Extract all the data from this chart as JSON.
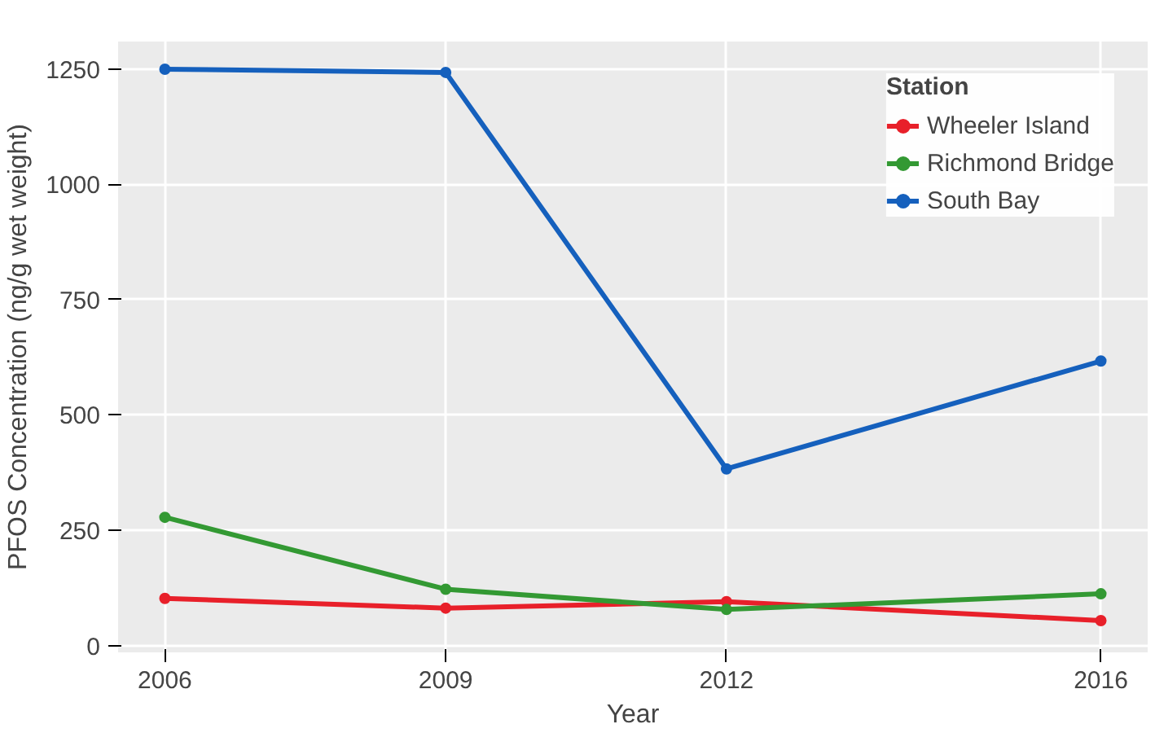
{
  "chart_data": {
    "type": "line",
    "xlabel": "Year",
    "ylabel": "PFOS Concentration (ng/g wet weight)",
    "legend_title": "Station",
    "x": [
      2006,
      2009,
      2012,
      2016
    ],
    "series": [
      {
        "name": "Wheeler Island",
        "color": "#e8202a",
        "values": [
          102,
          81,
          95,
          54
        ]
      },
      {
        "name": "Richmond Bridge",
        "color": "#339933",
        "values": [
          278,
          122,
          78,
          112
        ]
      },
      {
        "name": "South Bay",
        "color": "#1560bd",
        "values": [
          1250,
          1243,
          383,
          617
        ]
      }
    ],
    "xlim": [
      2005.5,
      2016.5
    ],
    "ylim": [
      -15,
      1310
    ],
    "xticks": [
      2006,
      2009,
      2012,
      2016
    ],
    "yticks": [
      0,
      250,
      500,
      750,
      1000,
      1250
    ],
    "grid": true,
    "legend": "top right",
    "marker": "circle",
    "line_style": "solid"
  }
}
